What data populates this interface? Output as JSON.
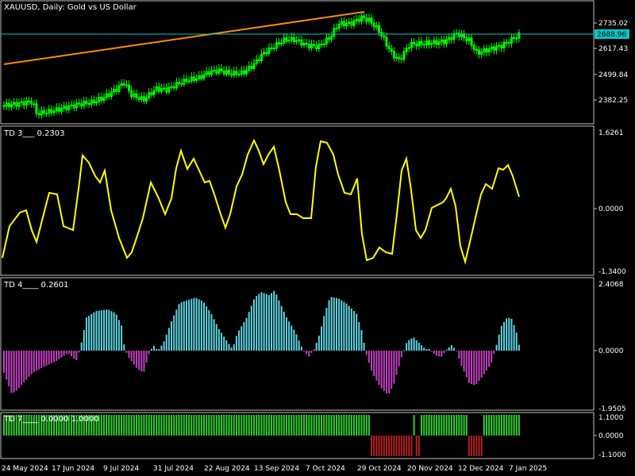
{
  "chart": {
    "title": "XAUUSD, Daily:  Gold vs US Dollar",
    "current_price": "2688.96",
    "price_axis": [
      "2735.02",
      "2617.43",
      "2499.84",
      "2382.25"
    ],
    "date_axis": [
      "24 May 2024",
      "17 Jun 2024",
      "9 Jul 2024",
      "31 Jul 2024",
      "22 Aug 2024",
      "13 Sep 2024",
      "7 Oct 2024",
      "29 Oct 2024",
      "20 Nov 2024",
      "12 Dec 2024",
      "7 Jan 2025"
    ]
  },
  "indicators": {
    "td3": {
      "label": "TD 3___ 0.2303",
      "axis": [
        "1.6261",
        "0.0000",
        "-1.3400"
      ]
    },
    "td4": {
      "label": "TD 4____ 0.2601",
      "axis": [
        "2.4068",
        "0.0000",
        "-1.9505"
      ]
    },
    "td7": {
      "label": "TD 7____ 0.0000 1.0000",
      "axis": [
        "1.1000",
        "0.0000",
        "-1.1000"
      ]
    }
  },
  "colors": {
    "bg": "#000000",
    "candle": "#00ff00",
    "trendline": "#ff8c00",
    "price_line": "#00c8c8",
    "td3_line": "#ffff00",
    "td4_pos": "#5fd3e0",
    "td4_neg": "#c040c0",
    "td7_up": "#32cd32",
    "td7_down": "#b22222",
    "grid": "#c0c0c0"
  }
}
